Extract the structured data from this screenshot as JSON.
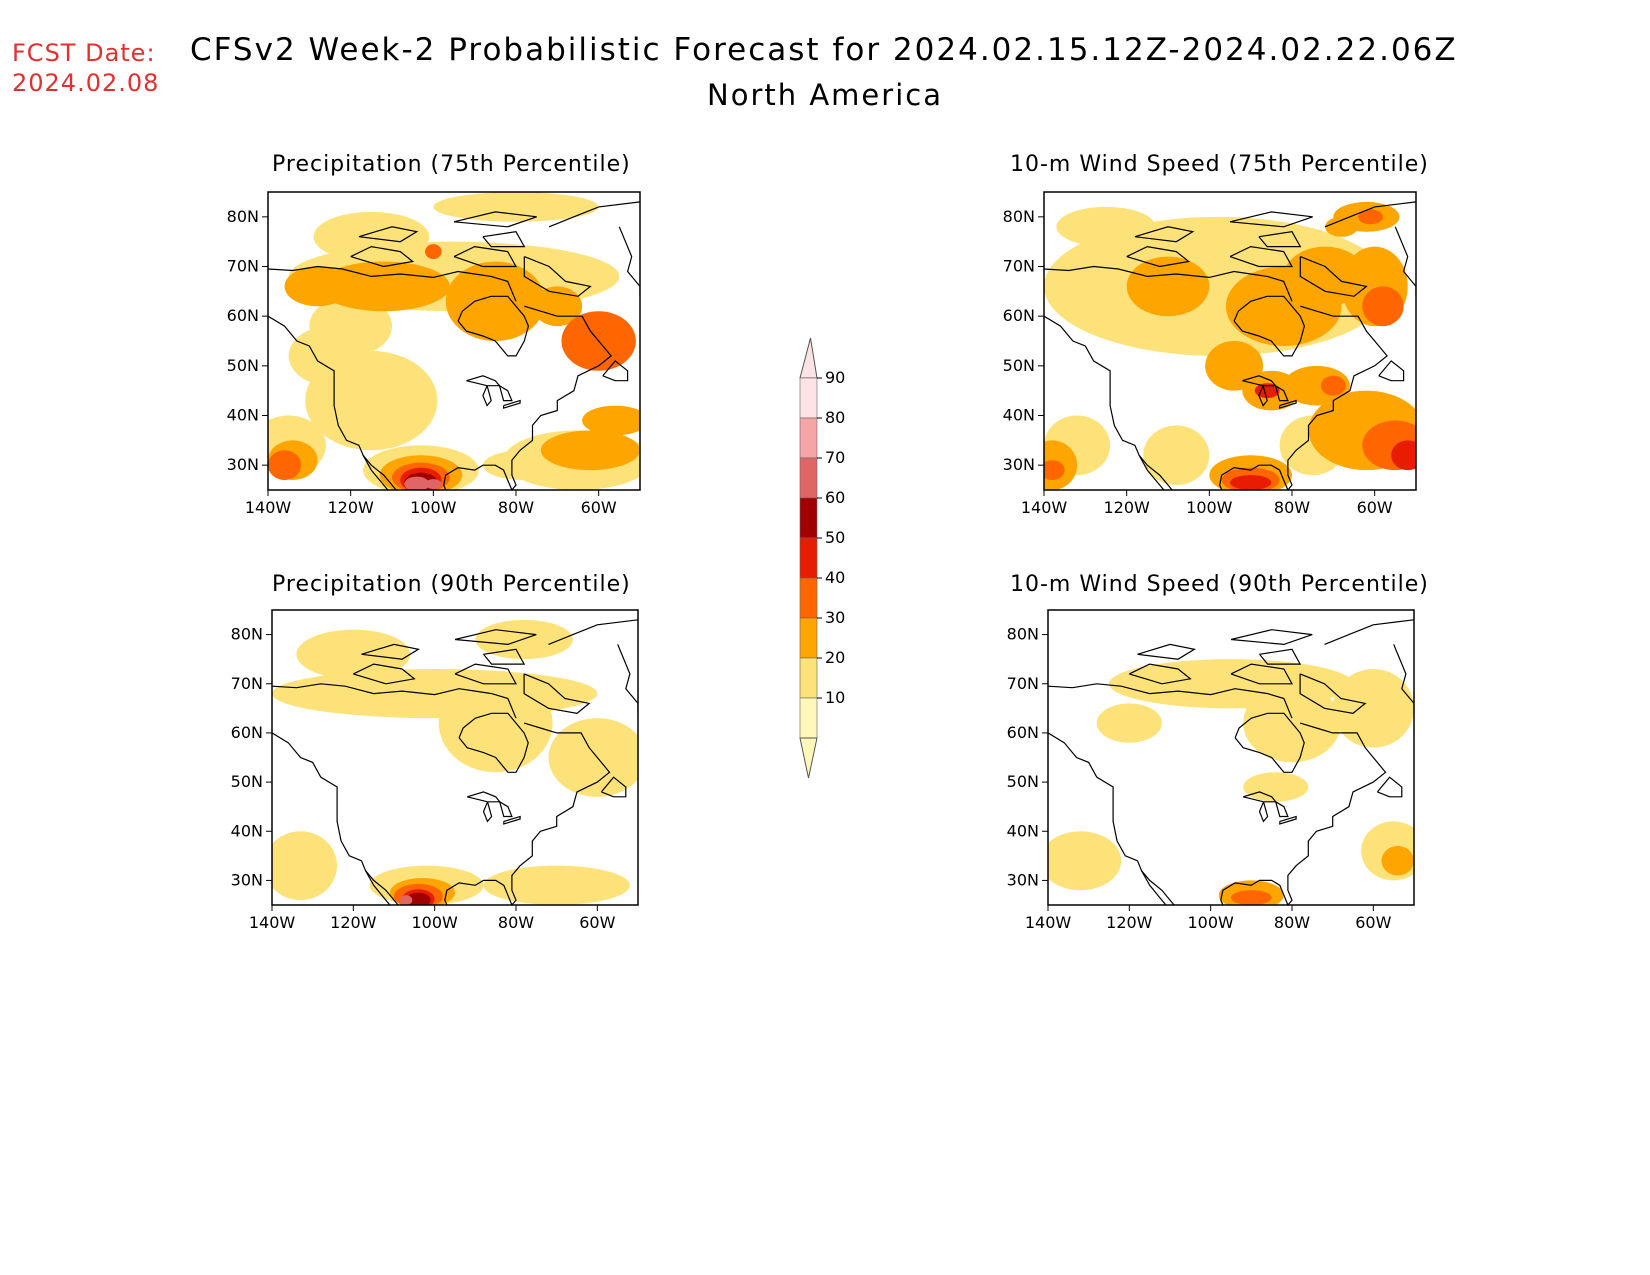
{
  "header": {
    "fcst_label": "FCST Date:",
    "fcst_date": "2024.02.08",
    "title": "CFSv2 Week-2 Probabilistic Forecast for 2024.02.15.12Z-2024.02.22.06Z",
    "subtitle": "North America"
  },
  "axes": {
    "lat_labels": [
      "80N",
      "70N",
      "60N",
      "50N",
      "40N",
      "30N"
    ],
    "lon_labels": [
      "140W",
      "120W",
      "100W",
      "80W",
      "60W"
    ],
    "lat_values": [
      80,
      70,
      60,
      50,
      40,
      30
    ],
    "lon_values": [
      -140,
      -120,
      -100,
      -80,
      -60
    ],
    "lat_range": [
      25,
      85
    ],
    "lon_range": [
      -140,
      -50
    ]
  },
  "panels": [
    {
      "title": "Precipitation (75th Percentile)",
      "variable": "precipitation",
      "percentile": 75
    },
    {
      "title": "10-m Wind Speed (75th Percentile)",
      "variable": "wind",
      "percentile": 75
    },
    {
      "title": "Precipitation (90th Percentile)",
      "variable": "precipitation",
      "percentile": 90
    },
    {
      "title": "10-m Wind Speed (90th Percentile)",
      "variable": "wind",
      "percentile": 90
    }
  ],
  "colorbar": {
    "labels": [
      "90",
      "80",
      "70",
      "60",
      "50",
      "40",
      "30",
      "20",
      "10"
    ],
    "colors": [
      "#fde3e3",
      "#f4a6a6",
      "#e06666",
      "#a00000",
      "#e81c00",
      "#ff6600",
      "#ffa500",
      "#fde27a",
      "#fff8b8"
    ]
  }
}
